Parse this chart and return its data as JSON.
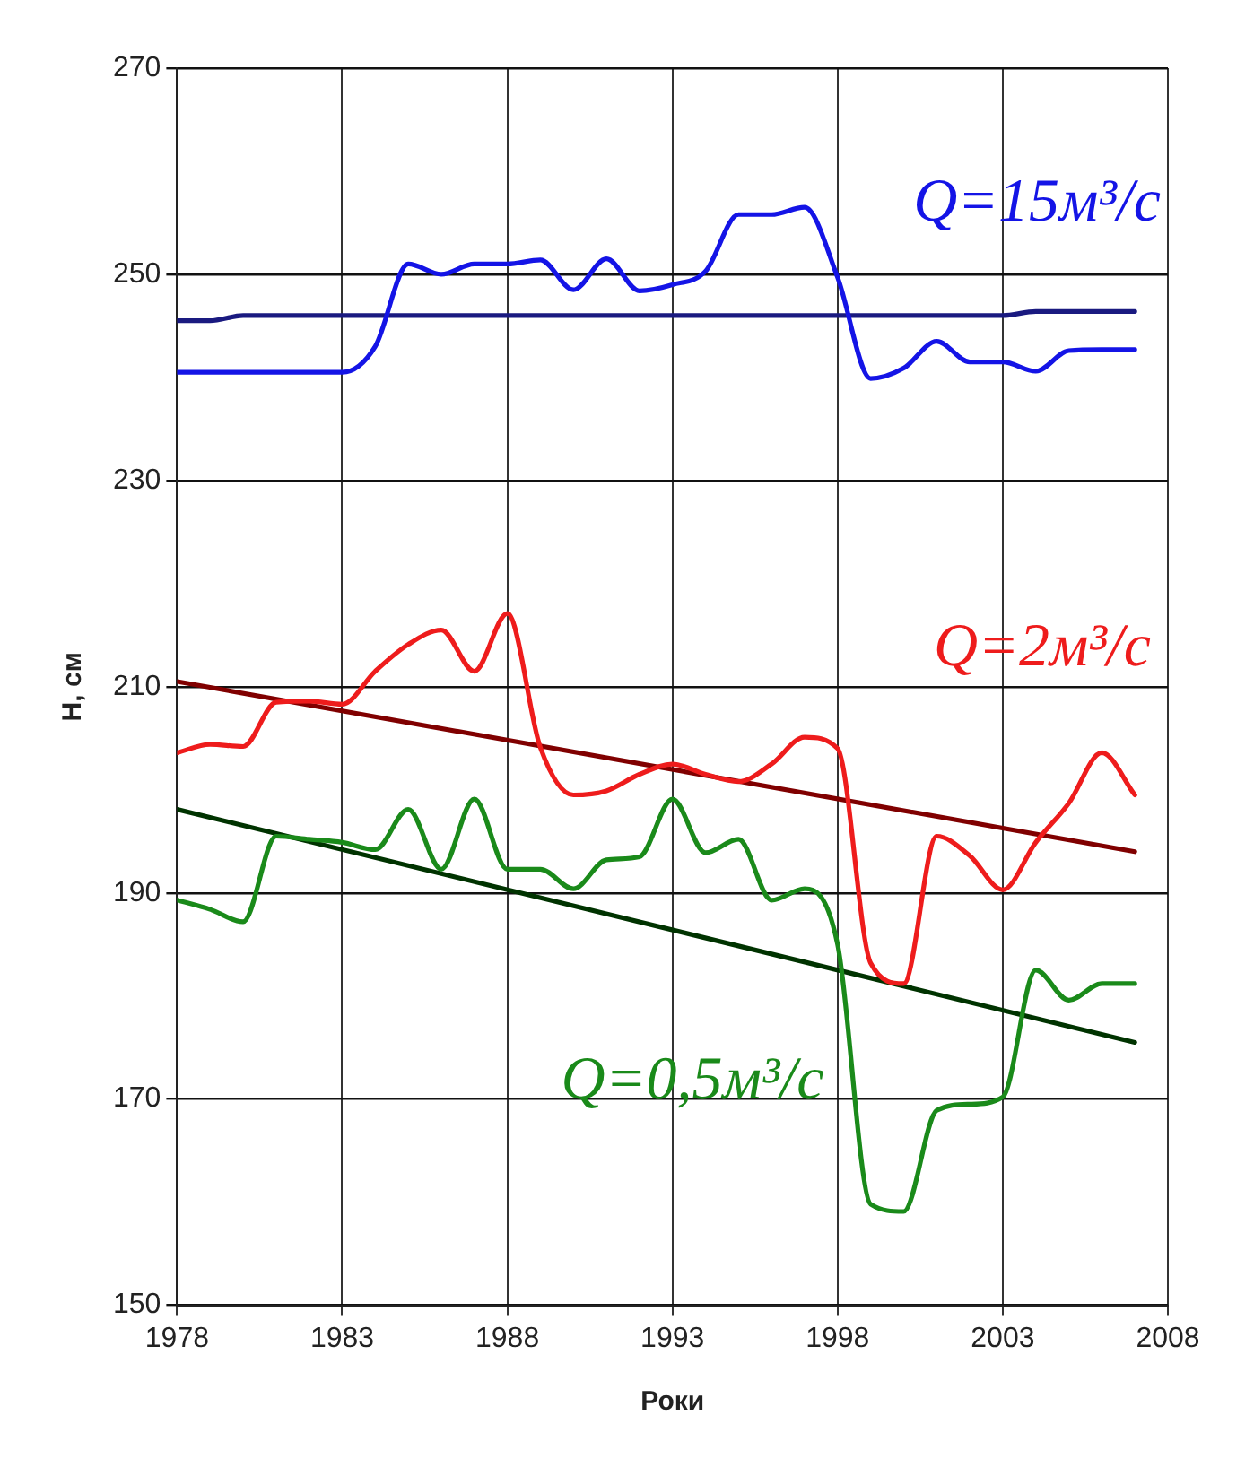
{
  "chart_data": {
    "type": "line",
    "xlabel": "Роки",
    "ylabel": "Н, см",
    "x": [
      1978,
      1979,
      1980,
      1981,
      1982,
      1983,
      1984,
      1985,
      1986,
      1987,
      1988,
      1989,
      1990,
      1991,
      1992,
      1993,
      1994,
      1995,
      1996,
      1997,
      1998,
      1999,
      2000,
      2001,
      2002,
      2003,
      2004,
      2005,
      2006,
      2007
    ],
    "series": [
      {
        "name": "Q=15м³/с",
        "color": "#1414e6",
        "values": [
          240.5,
          240.5,
          240.5,
          240.5,
          240.5,
          240.5,
          243,
          251,
          250,
          251,
          251,
          251.4,
          248.5,
          251.5,
          248.4,
          249,
          250.3,
          255.8,
          255.8,
          256.5,
          249.7,
          239.9,
          240.9,
          243.5,
          241.5,
          241.5,
          240.6,
          242.6,
          242.7,
          242.7
        ]
      },
      {
        "color": "#1a1a80",
        "x": [
          1978,
          1979,
          1980,
          2003,
          2004,
          2007
        ],
        "values": [
          245.5,
          245.5,
          246,
          246,
          246.4,
          246.4
        ]
      },
      {
        "name": "Q=2м³/с",
        "color": "#ee1c1c",
        "values": [
          203.6,
          204.4,
          204.2,
          208.5,
          208.6,
          208.3,
          211.5,
          214.1,
          215.5,
          211.5,
          217.1,
          204.1,
          199.5,
          199.9,
          201.5,
          202.5,
          201.5,
          200.8,
          202.5,
          205.1,
          204,
          183.2,
          181.2,
          195.5,
          193.6,
          190.3,
          194.9,
          198.7,
          203.6,
          199.5
        ]
      },
      {
        "color": "#800000",
        "x": [
          1978,
          2007
        ],
        "values": [
          210.5,
          194
        ]
      },
      {
        "name": "Q=0,5м³/с",
        "color": "#1a8a1a",
        "values": [
          189.3,
          188.4,
          187.2,
          195.5,
          195.2,
          194.9,
          194.2,
          198.1,
          192.3,
          199.1,
          192.3,
          192.3,
          190.4,
          193.2,
          193.5,
          199.1,
          193.9,
          195.2,
          189.3,
          190.4,
          185,
          159.8,
          159.1,
          168.9,
          169.5,
          170.2,
          182.5,
          179.6,
          181.2,
          181.2
        ]
      },
      {
        "color": "#003300",
        "x": [
          1978,
          2007
        ],
        "values": [
          198.1,
          175.5
        ]
      }
    ],
    "xlim": [
      1978,
      2008
    ],
    "xticks": [
      1978,
      1983,
      1988,
      1993,
      1998,
      2003,
      2008
    ],
    "ylim": [
      150,
      270
    ],
    "yticks": [
      150,
      170,
      190,
      210,
      230,
      250,
      270
    ],
    "grid": true,
    "legend": false,
    "marker": "none",
    "line_style": "solid"
  }
}
